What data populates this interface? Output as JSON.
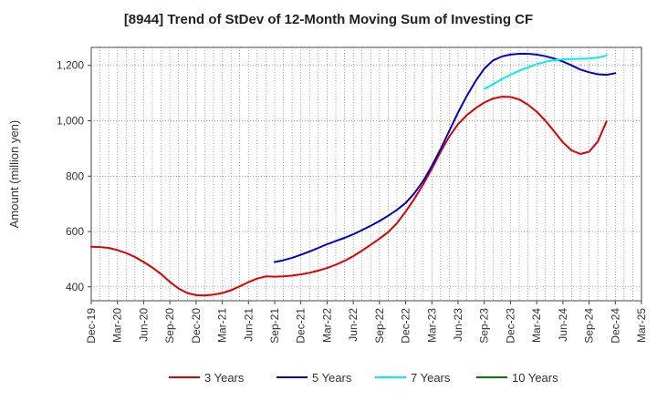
{
  "chart_data": {
    "type": "line",
    "title": "[8944]  Trend of StDev of 12-Month Moving Sum of Investing CF",
    "xlabel": "",
    "ylabel": "Amount (million yen)",
    "ylim": [
      350,
      1265
    ],
    "yticks": [
      400,
      600,
      800,
      1000,
      1200
    ],
    "ytick_labels": [
      "400",
      "600",
      "800",
      "1,000",
      "1,200"
    ],
    "x_categories": [
      "Dec-19",
      "Mar-20",
      "Jun-20",
      "Sep-20",
      "Dec-20",
      "Mar-21",
      "Jun-21",
      "Sep-21",
      "Dec-21",
      "Mar-22",
      "Jun-22",
      "Sep-22",
      "Dec-22",
      "Mar-23",
      "Jun-23",
      "Sep-23",
      "Dec-23",
      "Mar-24",
      "Jun-24",
      "Sep-24",
      "Dec-24",
      "Mar-25"
    ],
    "grid": true,
    "legend_position": "bottom",
    "series": [
      {
        "name": "3 Years",
        "color": "#dd0000",
        "start_index": 0,
        "values": [
          545,
          544,
          541,
          533,
          522,
          508,
          490,
          470,
          446,
          418,
          394,
          378,
          370,
          369,
          372,
          378,
          388,
          402,
          417,
          430,
          438,
          437,
          438,
          441,
          445,
          451,
          459,
          468,
          480,
          494,
          511,
          531,
          552,
          574,
          598,
          630,
          672,
          718,
          770,
          827,
          888,
          943,
          988,
          1020,
          1045,
          1066,
          1080,
          1087,
          1086,
          1077,
          1058,
          1033,
          1000,
          962,
          922,
          893,
          880,
          888,
          925,
          998
        ]
      },
      {
        "name": "5 Years",
        "color": "#0000cc",
        "start_index": 21,
        "values": [
          490,
          496,
          505,
          516,
          528,
          541,
          554,
          566,
          577,
          590,
          605,
          621,
          638,
          657,
          678,
          703,
          738,
          782,
          837,
          898,
          964,
          1030,
          1090,
          1143,
          1188,
          1218,
          1232,
          1239,
          1242,
          1242,
          1239,
          1233,
          1225,
          1214,
          1200,
          1185,
          1175,
          1168,
          1166,
          1172
        ]
      },
      {
        "name": "7 Years",
        "color": "#00eeee",
        "start_index": 45,
        "values": [
          1115,
          1132,
          1150,
          1166,
          1181,
          1193,
          1204,
          1213,
          1219,
          1222,
          1223,
          1224,
          1225,
          1228,
          1235
        ]
      },
      {
        "name": "10 Years",
        "color": "#008000",
        "start_index": 0,
        "values": []
      }
    ]
  }
}
